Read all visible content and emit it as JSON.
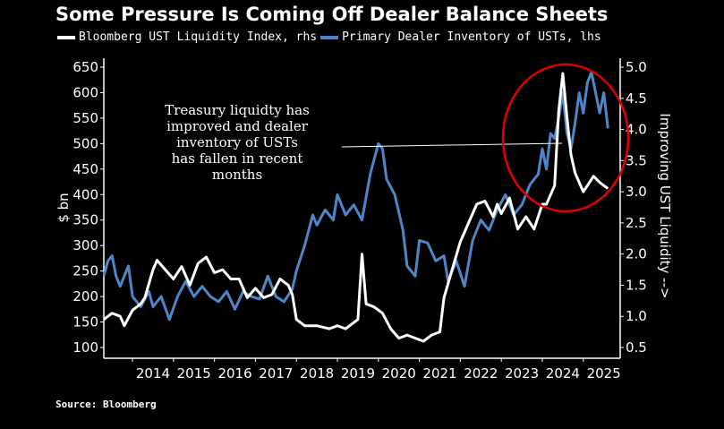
{
  "chart_data": {
    "type": "line",
    "title": "Some Pressure Is Coming Off Dealer Balance Sheets",
    "source": "Source: Bloomberg",
    "ylabel_left": "$ bn",
    "ylabel_right": "Improving UST Liquidity -->",
    "left_axis": {
      "ticks": [
        650,
        600,
        550,
        500,
        450,
        400,
        350,
        300,
        250,
        200,
        150,
        100
      ],
      "ylim": [
        100,
        650
      ]
    },
    "right_axis": {
      "ticks": [
        "5.0",
        "4.5",
        "4.0",
        "3.5",
        "3.0",
        "2.5",
        "2.0",
        "1.5",
        "1.0",
        "0.5"
      ],
      "ylim": [
        0.5,
        5.0
      ]
    },
    "x_ticks": [
      "2014",
      "2015",
      "2016",
      "2017",
      "2018",
      "2019",
      "2020",
      "2021",
      "2022",
      "2023",
      "2024",
      "2025"
    ],
    "annotation": [
      "Treasury liquidty has",
      "improved and dealer",
      "inventory of USTs",
      "has fallen in recent",
      "months"
    ],
    "series": [
      {
        "name": "Bloomberg UST Liquidity Index, rhs",
        "color": "#ffffff",
        "axis": "right",
        "points": [
          [
            2013.3,
            0.95
          ],
          [
            2013.5,
            1.05
          ],
          [
            2013.7,
            1.0
          ],
          [
            2013.8,
            0.85
          ],
          [
            2014.0,
            1.1
          ],
          [
            2014.2,
            1.2
          ],
          [
            2014.3,
            1.3
          ],
          [
            2014.5,
            1.75
          ],
          [
            2014.6,
            1.9
          ],
          [
            2014.8,
            1.75
          ],
          [
            2015.0,
            1.6
          ],
          [
            2015.2,
            1.8
          ],
          [
            2015.4,
            1.5
          ],
          [
            2015.6,
            1.85
          ],
          [
            2015.8,
            1.95
          ],
          [
            2016.0,
            1.7
          ],
          [
            2016.2,
            1.75
          ],
          [
            2016.4,
            1.6
          ],
          [
            2016.6,
            1.6
          ],
          [
            2016.8,
            1.3
          ],
          [
            2017.0,
            1.45
          ],
          [
            2017.2,
            1.3
          ],
          [
            2017.4,
            1.35
          ],
          [
            2017.6,
            1.6
          ],
          [
            2017.8,
            1.5
          ],
          [
            2017.9,
            1.35
          ],
          [
            2018.0,
            0.95
          ],
          [
            2018.2,
            0.85
          ],
          [
            2018.5,
            0.85
          ],
          [
            2018.8,
            0.8
          ],
          [
            2019.0,
            0.85
          ],
          [
            2019.2,
            0.8
          ],
          [
            2019.4,
            0.9
          ],
          [
            2019.5,
            0.95
          ],
          [
            2019.6,
            2.0
          ],
          [
            2019.7,
            1.2
          ],
          [
            2019.9,
            1.15
          ],
          [
            2020.1,
            1.05
          ],
          [
            2020.3,
            0.8
          ],
          [
            2020.5,
            0.65
          ],
          [
            2020.7,
            0.7
          ],
          [
            2020.9,
            0.65
          ],
          [
            2021.1,
            0.6
          ],
          [
            2021.3,
            0.7
          ],
          [
            2021.5,
            0.75
          ],
          [
            2021.6,
            1.3
          ],
          [
            2021.8,
            1.75
          ],
          [
            2022.0,
            2.2
          ],
          [
            2022.2,
            2.5
          ],
          [
            2022.4,
            2.8
          ],
          [
            2022.6,
            2.85
          ],
          [
            2022.8,
            2.6
          ],
          [
            2022.9,
            2.8
          ],
          [
            2023.0,
            2.65
          ],
          [
            2023.2,
            2.9
          ],
          [
            2023.4,
            2.4
          ],
          [
            2023.6,
            2.6
          ],
          [
            2023.8,
            2.4
          ],
          [
            2024.0,
            2.8
          ],
          [
            2024.1,
            2.8
          ],
          [
            2024.3,
            3.1
          ],
          [
            2024.4,
            4.3
          ],
          [
            2024.5,
            4.9
          ],
          [
            2024.6,
            4.2
          ],
          [
            2024.7,
            3.6
          ],
          [
            2024.8,
            3.3
          ],
          [
            2025.0,
            3.0
          ],
          [
            2025.1,
            3.1
          ],
          [
            2025.25,
            3.25
          ],
          [
            2025.4,
            3.15
          ],
          [
            2025.6,
            3.05
          ]
        ]
      },
      {
        "name": "Primary Dealer Inventory of USTs, lhs",
        "color": "#4f86c8",
        "axis": "left",
        "points": [
          [
            2013.3,
            240
          ],
          [
            2013.4,
            270
          ],
          [
            2013.5,
            280
          ],
          [
            2013.6,
            240
          ],
          [
            2013.7,
            220
          ],
          [
            2013.9,
            260
          ],
          [
            2014.0,
            200
          ],
          [
            2014.2,
            180
          ],
          [
            2014.4,
            210
          ],
          [
            2014.5,
            180
          ],
          [
            2014.7,
            200
          ],
          [
            2014.9,
            155
          ],
          [
            2015.1,
            200
          ],
          [
            2015.3,
            230
          ],
          [
            2015.5,
            200
          ],
          [
            2015.7,
            220
          ],
          [
            2015.9,
            200
          ],
          [
            2016.1,
            190
          ],
          [
            2016.3,
            210
          ],
          [
            2016.5,
            175
          ],
          [
            2016.7,
            210
          ],
          [
            2016.9,
            200
          ],
          [
            2017.1,
            195
          ],
          [
            2017.3,
            240
          ],
          [
            2017.5,
            200
          ],
          [
            2017.7,
            190
          ],
          [
            2017.9,
            215
          ],
          [
            2018.0,
            250
          ],
          [
            2018.2,
            300
          ],
          [
            2018.4,
            360
          ],
          [
            2018.5,
            340
          ],
          [
            2018.7,
            370
          ],
          [
            2018.9,
            350
          ],
          [
            2019.0,
            400
          ],
          [
            2019.2,
            360
          ],
          [
            2019.4,
            380
          ],
          [
            2019.6,
            350
          ],
          [
            2019.8,
            440
          ],
          [
            2020.0,
            500
          ],
          [
            2020.1,
            490
          ],
          [
            2020.2,
            430
          ],
          [
            2020.4,
            400
          ],
          [
            2020.6,
            330
          ],
          [
            2020.7,
            260
          ],
          [
            2020.9,
            240
          ],
          [
            2021.0,
            310
          ],
          [
            2021.2,
            305
          ],
          [
            2021.4,
            270
          ],
          [
            2021.6,
            280
          ],
          [
            2021.7,
            230
          ],
          [
            2021.9,
            270
          ],
          [
            2022.1,
            220
          ],
          [
            2022.3,
            310
          ],
          [
            2022.5,
            350
          ],
          [
            2022.7,
            330
          ],
          [
            2022.9,
            370
          ],
          [
            2023.1,
            400
          ],
          [
            2023.3,
            360
          ],
          [
            2023.5,
            380
          ],
          [
            2023.7,
            420
          ],
          [
            2023.9,
            440
          ],
          [
            2024.0,
            490
          ],
          [
            2024.1,
            450
          ],
          [
            2024.2,
            520
          ],
          [
            2024.3,
            510
          ],
          [
            2024.4,
            550
          ],
          [
            2024.5,
            600
          ],
          [
            2024.6,
            520
          ],
          [
            2024.7,
            490
          ],
          [
            2024.8,
            540
          ],
          [
            2024.9,
            600
          ],
          [
            2025.0,
            560
          ],
          [
            2025.1,
            620
          ],
          [
            2025.2,
            640
          ],
          [
            2025.3,
            600
          ],
          [
            2025.4,
            560
          ],
          [
            2025.5,
            600
          ],
          [
            2025.6,
            530
          ]
        ]
      }
    ]
  }
}
